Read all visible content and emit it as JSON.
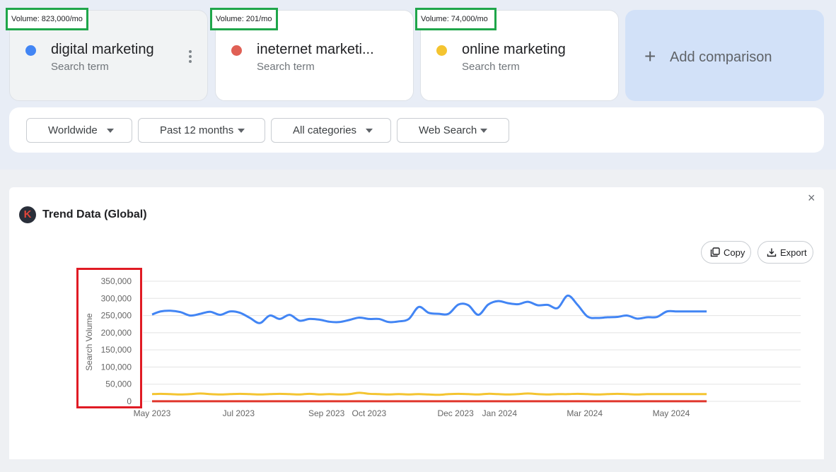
{
  "comparisons": [
    {
      "volume": "Volume: 823,000/mo",
      "term": "digital marketing",
      "sub": "Search term",
      "color": "#4285f4"
    },
    {
      "volume": "Volume: 201/mo",
      "term": "ineternet marketi...",
      "sub": "Search term",
      "color": "#e06055"
    },
    {
      "volume": "Volume: 74,000/mo",
      "term": "online marketing",
      "sub": "Search term",
      "color": "#f4c430"
    }
  ],
  "add_comparison": {
    "icon": "+",
    "label": "Add comparison"
  },
  "filters": [
    "Worldwide",
    "Past 12 months",
    "All categories",
    "Web Search"
  ],
  "panel": {
    "logo": "K",
    "title": "Trend Data (Global)",
    "close": "×",
    "copy_label": "Copy",
    "export_label": "Export"
  },
  "chart_data": {
    "type": "line",
    "title": "",
    "ylabel": "Search Volume",
    "ylim": [
      0,
      350000
    ],
    "yticks": [
      "350,000",
      "300,000",
      "250,000",
      "200,000",
      "150,000",
      "100,000",
      "50,000",
      "0"
    ],
    "xticks": [
      "May 2023",
      "Jul 2023",
      "Sep 2023",
      "Oct 2023",
      "Dec 2023",
      "Jan 2024",
      "Mar 2024",
      "May 2024"
    ],
    "x": [
      "2023-05-01",
      "2023-05-07",
      "2023-05-14",
      "2023-05-21",
      "2023-05-28",
      "2023-06-04",
      "2023-06-11",
      "2023-06-18",
      "2023-06-25",
      "2023-07-02",
      "2023-07-09",
      "2023-07-16",
      "2023-07-23",
      "2023-07-30",
      "2023-08-06",
      "2023-08-13",
      "2023-08-20",
      "2023-08-27",
      "2023-09-03",
      "2023-09-10",
      "2023-09-17",
      "2023-09-24",
      "2023-10-01",
      "2023-10-08",
      "2023-10-15",
      "2023-10-22",
      "2023-10-29",
      "2023-11-05",
      "2023-11-12",
      "2023-11-19",
      "2023-11-26",
      "2023-12-03",
      "2023-12-10",
      "2023-12-17",
      "2023-12-24",
      "2023-12-31",
      "2024-01-07",
      "2024-01-14",
      "2024-01-21",
      "2024-01-28",
      "2024-02-04",
      "2024-02-11",
      "2024-02-18",
      "2024-02-25",
      "2024-03-03",
      "2024-03-10",
      "2024-03-17",
      "2024-03-24",
      "2024-03-31",
      "2024-04-07",
      "2024-04-14",
      "2024-04-21",
      "2024-04-28",
      "2024-05-05",
      "2024-05-12",
      "2024-05-19",
      "2024-05-26"
    ],
    "series": [
      {
        "name": "digital marketing",
        "color": "#4285f4",
        "values": [
          253000,
          262000,
          264000,
          260000,
          250000,
          255000,
          261000,
          252000,
          262000,
          258000,
          243000,
          228000,
          250000,
          240000,
          252000,
          235000,
          240000,
          238000,
          232000,
          231000,
          237000,
          244000,
          240000,
          240000,
          231000,
          233000,
          240000,
          275000,
          258000,
          255000,
          255000,
          282000,
          280000,
          252000,
          282000,
          292000,
          286000,
          283000,
          290000,
          280000,
          281000,
          272000,
          308000,
          281000,
          247000,
          243000,
          245000,
          246000,
          250000,
          241000,
          245000,
          246000,
          262000,
          262000,
          262000,
          262000,
          262000
        ]
      },
      {
        "name": "online marketing",
        "color": "#f4c430",
        "values": [
          21000,
          22000,
          21000,
          20000,
          21000,
          23000,
          21000,
          20000,
          21000,
          22000,
          21000,
          20000,
          21000,
          22000,
          21000,
          20000,
          22000,
          20000,
          21000,
          20000,
          21000,
          25000,
          22000,
          21000,
          20000,
          21000,
          20000,
          21000,
          20000,
          19000,
          21000,
          22000,
          21000,
          20000,
          22000,
          21000,
          20000,
          21000,
          23000,
          21000,
          20000,
          21000,
          21000,
          22000,
          21000,
          20000,
          21000,
          22000,
          21000,
          20000,
          21000,
          21000,
          21000,
          21000,
          21000,
          21000,
          21000
        ]
      },
      {
        "name": "ineternet marketi...",
        "color": "#e0362c",
        "values": [
          200,
          200,
          200,
          200,
          200,
          200,
          200,
          200,
          200,
          200,
          200,
          200,
          200,
          200,
          200,
          200,
          200,
          200,
          200,
          200,
          200,
          200,
          200,
          200,
          200,
          200,
          200,
          200,
          200,
          200,
          200,
          200,
          200,
          200,
          200,
          200,
          200,
          200,
          200,
          200,
          200,
          200,
          200,
          200,
          200,
          200,
          200,
          200,
          200,
          200,
          200,
          200,
          200,
          200,
          200,
          200,
          200
        ]
      }
    ]
  }
}
